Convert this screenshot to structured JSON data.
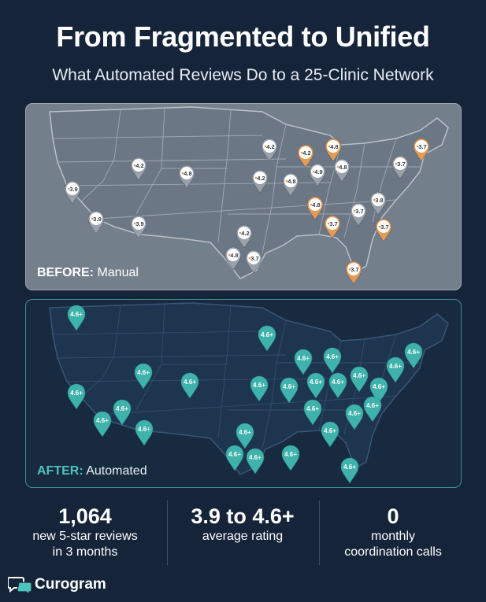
{
  "header": {
    "title": "From Fragmented to Unified",
    "subtitle": "What Automated Reviews Do to a 25-Clinic Network"
  },
  "before_panel": {
    "label_bold": "BEFORE:",
    "label_rest": "Manual",
    "pins": [
      {
        "value": "3.9",
        "tone": "gray"
      },
      {
        "value": "4.2",
        "tone": "gray"
      },
      {
        "value": "4.8",
        "tone": "gray"
      },
      {
        "value": "3.9",
        "tone": "gray"
      },
      {
        "value": "3.9",
        "tone": "gray"
      },
      {
        "value": "4.2",
        "tone": "gray"
      },
      {
        "value": "4.2",
        "tone": "gray"
      },
      {
        "value": "4.8",
        "tone": "gray"
      },
      {
        "value": "4.2",
        "tone": "orange"
      },
      {
        "value": "4.8",
        "tone": "orange"
      },
      {
        "value": "4.9",
        "tone": "gray"
      },
      {
        "value": "4.8",
        "tone": "gray"
      },
      {
        "value": "4.8",
        "tone": "orange"
      },
      {
        "value": "4.2",
        "tone": "gray"
      },
      {
        "value": "4.8",
        "tone": "gray"
      },
      {
        "value": "3.7",
        "tone": "gray"
      },
      {
        "value": "3.7",
        "tone": "orange"
      },
      {
        "value": "3.7",
        "tone": "gray"
      },
      {
        "value": "3.7",
        "tone": "orange"
      },
      {
        "value": "3.8",
        "tone": "gray"
      },
      {
        "value": "3.7",
        "tone": "gray"
      },
      {
        "value": "3.7",
        "tone": "orange"
      },
      {
        "value": "3.7",
        "tone": "orange"
      }
    ]
  },
  "after_panel": {
    "label_bold": "AFTER:",
    "label_rest": "Automated",
    "pin_value": "4.6+"
  },
  "stats": [
    {
      "big": "1,064",
      "small_1": "new 5-star reviews",
      "small_2": "in 3 months"
    },
    {
      "big": "3.9 to 4.6+",
      "small_1": "average rating",
      "small_2": ""
    },
    {
      "big": "0",
      "small_1": "monthly",
      "small_2": "coordination calls"
    }
  ],
  "brand": {
    "name": "Curogram",
    "icon": "chat-bubbles-icon"
  },
  "colors": {
    "background": "#16243a",
    "before_map": "#747f8c",
    "after_map": "#172a40",
    "after_pin": "#3fb3ab",
    "orange_pin": "#e59a55",
    "gray_pin": "#dde1e6",
    "accent_teal": "#4fc3bd"
  }
}
